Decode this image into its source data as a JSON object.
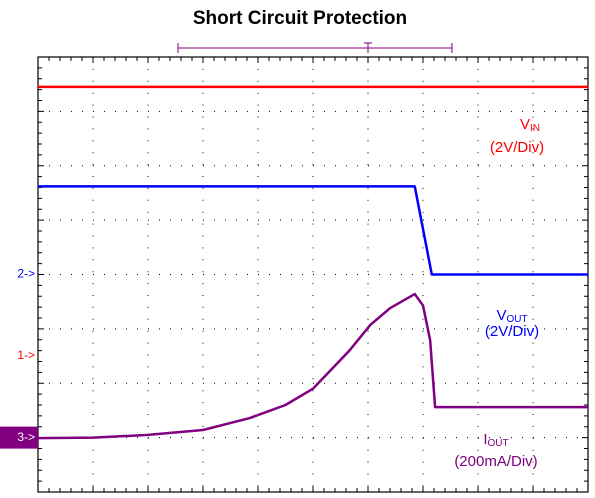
{
  "chart_data": {
    "type": "line",
    "title": "Short Circuit Protection",
    "xlim": [
      0,
      10
    ],
    "ylim": [
      0,
      8
    ],
    "xticks": [
      0,
      1,
      2,
      3,
      4,
      5,
      6,
      7,
      8,
      9,
      10
    ],
    "yticks": [
      0,
      1,
      2,
      3,
      4,
      5,
      6,
      7,
      8
    ],
    "grid": true,
    "series": [
      {
        "name": "VIN",
        "scale_label": "(2V/Div)",
        "marker": "1->",
        "color": "#ff0000",
        "x": [
          0,
          10
        ],
        "values": [
          7.45,
          7.45
        ]
      },
      {
        "name": "VOUT",
        "scale_label": "(2V/Div)",
        "marker": "2->",
        "color": "#0000ff",
        "x": [
          0,
          6.85,
          7.16,
          10
        ],
        "values": [
          5.62,
          5.62,
          4.0,
          4.0
        ]
      },
      {
        "name": "IOUT",
        "scale_label": "(200mA/Div)",
        "marker": "3->",
        "color": "#800080",
        "x": [
          0,
          1,
          2,
          3,
          3.85,
          4.5,
          5,
          5.67,
          6.04,
          6.4,
          6.85,
          7.0,
          7.13,
          7.22,
          10
        ],
        "values": [
          0.99,
          1.0,
          1.05,
          1.14,
          1.36,
          1.6,
          1.9,
          2.61,
          3.07,
          3.38,
          3.64,
          3.43,
          2.79,
          1.56,
          1.56
        ]
      }
    ]
  }
}
